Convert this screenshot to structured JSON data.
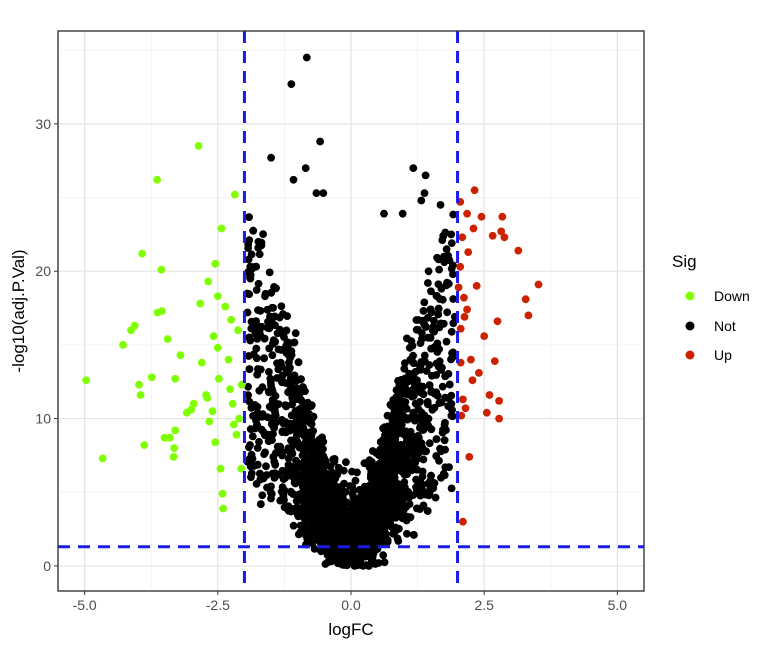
{
  "chart_data": {
    "type": "scatter",
    "title": "",
    "xlabel": "logFC",
    "ylabel": "-log10(adj.P.Val)",
    "xlim": [
      -5.5,
      5.5
    ],
    "ylim": [
      -1.7,
      36.3
    ],
    "x_ticks": [
      -5,
      -2.5,
      0,
      2.5,
      5
    ],
    "x_tick_labels": [
      "-5.0",
      "-2.5",
      "0.0",
      "2.5",
      "5.0"
    ],
    "y_ticks": [
      0,
      10,
      20,
      30
    ],
    "y_tick_labels": [
      "0",
      "10",
      "20",
      "30"
    ],
    "grid": true,
    "panel_border": true,
    "threshold_lines": {
      "vertical": [
        -2,
        2
      ],
      "horizontal": [
        1.3
      ],
      "color": "#1a1aeb",
      "style": "dashed"
    },
    "legend": {
      "title": "Sig",
      "position": "right",
      "entries": [
        {
          "label": "Down",
          "color": "#7fff00"
        },
        {
          "label": "Not",
          "color": "#000000"
        },
        {
          "label": "Up",
          "color": "#cc2200"
        }
      ]
    },
    "series": [
      {
        "name": "Down",
        "color": "#7fff00",
        "points": [
          [
            -4.97,
            12.6
          ],
          [
            -4.66,
            7.3
          ],
          [
            -4.28,
            15.0
          ],
          [
            -4.13,
            16.0
          ],
          [
            -4.06,
            16.3
          ],
          [
            -3.98,
            12.3
          ],
          [
            -3.95,
            11.6
          ],
          [
            -3.92,
            21.2
          ],
          [
            -3.88,
            8.2
          ],
          [
            -3.74,
            12.8
          ],
          [
            -3.64,
            26.2
          ],
          [
            -3.63,
            17.2
          ],
          [
            -3.55,
            17.3
          ],
          [
            -3.56,
            20.1
          ],
          [
            -3.5,
            8.7
          ],
          [
            -3.44,
            15.4
          ],
          [
            -3.4,
            8.7
          ],
          [
            -3.33,
            7.4
          ],
          [
            -3.32,
            8.0
          ],
          [
            -3.3,
            12.7
          ],
          [
            -3.3,
            9.2
          ],
          [
            -3.2,
            14.3
          ],
          [
            -3.08,
            10.4
          ],
          [
            -3.0,
            10.6
          ],
          [
            -2.95,
            11.0
          ],
          [
            -2.86,
            28.5
          ],
          [
            -2.83,
            17.8
          ],
          [
            -2.8,
            13.8
          ],
          [
            -2.72,
            11.6
          ],
          [
            -2.7,
            11.4
          ],
          [
            -2.68,
            19.3
          ],
          [
            -2.66,
            9.8
          ],
          [
            -2.6,
            10.5
          ],
          [
            -2.58,
            15.6
          ],
          [
            -2.55,
            8.4
          ],
          [
            -2.5,
            14.8
          ],
          [
            -2.48,
            12.7
          ],
          [
            -2.45,
            6.6
          ],
          [
            -2.41,
            4.9
          ],
          [
            -2.4,
            3.9
          ],
          [
            -2.36,
            17.6
          ],
          [
            -2.3,
            14.0
          ],
          [
            -2.27,
            12.0
          ],
          [
            -2.25,
            16.7
          ],
          [
            -2.22,
            11.0
          ],
          [
            -2.18,
            25.2
          ],
          [
            -2.15,
            8.9
          ],
          [
            -2.12,
            16.0
          ],
          [
            -2.1,
            10.0
          ],
          [
            -2.06,
            6.6
          ],
          [
            -2.55,
            20.5
          ],
          [
            -2.5,
            18.3
          ],
          [
            -2.43,
            22.9
          ],
          [
            -2.2,
            9.6
          ],
          [
            -2.05,
            12.3
          ]
        ]
      },
      {
        "name": "Up",
        "color": "#cc2200",
        "points": [
          [
            2.02,
            18.9
          ],
          [
            2.05,
            24.7
          ],
          [
            2.06,
            16.1
          ],
          [
            2.06,
            13.8
          ],
          [
            2.07,
            10.2
          ],
          [
            2.09,
            22.3
          ],
          [
            2.1,
            11.3
          ],
          [
            2.12,
            18.2
          ],
          [
            2.13,
            16.9
          ],
          [
            2.15,
            10.7
          ],
          [
            2.18,
            23.9
          ],
          [
            2.2,
            21.3
          ],
          [
            2.22,
            7.4
          ],
          [
            2.25,
            14.0
          ],
          [
            2.28,
            12.6
          ],
          [
            2.3,
            22.9
          ],
          [
            2.32,
            25.5
          ],
          [
            2.36,
            19.0
          ],
          [
            2.4,
            13.1
          ],
          [
            2.45,
            23.7
          ],
          [
            2.5,
            15.6
          ],
          [
            2.55,
            10.4
          ],
          [
            2.6,
            11.6
          ],
          [
            2.66,
            22.4
          ],
          [
            2.7,
            13.9
          ],
          [
            2.75,
            16.6
          ],
          [
            2.78,
            11.2
          ],
          [
            2.78,
            10.0
          ],
          [
            2.82,
            22.7
          ],
          [
            2.84,
            23.7
          ],
          [
            2.88,
            22.3
          ],
          [
            2.1,
            3.0
          ],
          [
            3.14,
            21.4
          ],
          [
            3.28,
            18.1
          ],
          [
            3.33,
            17.0
          ],
          [
            3.52,
            19.1
          ],
          [
            2.18,
            17.4
          ],
          [
            2.05,
            20.3
          ]
        ]
      },
      {
        "name": "Not",
        "color": "#000000",
        "note": "dense V-shaped cloud between logFC -2 and 2",
        "highlight_points": [
          [
            -0.83,
            34.5
          ],
          [
            -1.12,
            32.7
          ],
          [
            -1.5,
            27.7
          ],
          [
            -0.58,
            28.8
          ],
          [
            -0.85,
            27.0
          ],
          [
            -0.65,
            25.3
          ],
          [
            -0.52,
            25.3
          ],
          [
            -1.08,
            26.2
          ],
          [
            1.17,
            27.0
          ],
          [
            1.4,
            26.5
          ],
          [
            1.32,
            24.8
          ],
          [
            1.38,
            25.3
          ],
          [
            1.68,
            24.5
          ],
          [
            0.97,
            23.9
          ],
          [
            0.62,
            23.9
          ]
        ]
      }
    ]
  }
}
